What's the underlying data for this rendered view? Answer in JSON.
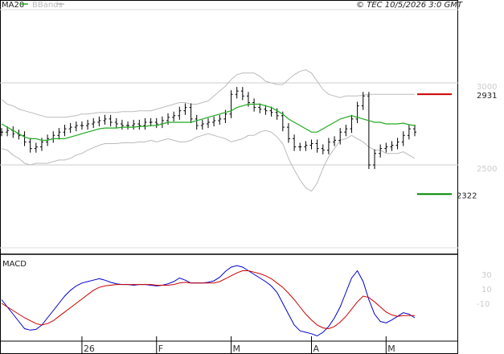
{
  "header": {
    "legend": [
      {
        "name": "MA20",
        "color": "#22aa22"
      },
      {
        "name": "BBands",
        "color": "#bbbbbb"
      }
    ],
    "copyright": "© TEC 10/5/2026 3:0 GMT"
  },
  "chart_data": [
    {
      "type": "line",
      "title": "",
      "price_axis": {
        "ticks": [
          {
            "value": 3000,
            "label": "3000"
          },
          {
            "value": 2500,
            "label": "2500"
          }
        ]
      },
      "levels": [
        {
          "value": 2931,
          "label": "2931",
          "color": "#cc0000"
        },
        {
          "value": 2322,
          "label": "2322",
          "color": "#008800"
        }
      ],
      "months": [
        {
          "index": 14,
          "label": "26"
        },
        {
          "index": 27,
          "label": "F"
        },
        {
          "index": 40,
          "label": "M"
        },
        {
          "index": 54,
          "label": "A"
        },
        {
          "index": 67,
          "label": "M"
        }
      ],
      "series": [
        {
          "name": "",
          "kind": "ohlc",
          "close": [
            2700,
            2710,
            2690,
            2680,
            2640,
            2600,
            2610,
            2640,
            2660,
            2680,
            2700,
            2720,
            2730,
            2740,
            2740,
            2750,
            2760,
            2770,
            2780,
            2760,
            2750,
            2740,
            2740,
            2750,
            2740,
            2760,
            2760,
            2750,
            2770,
            2790,
            2800,
            2830,
            2850,
            2780,
            2740,
            2750,
            2760,
            2770,
            2780,
            2810,
            2930,
            2950,
            2920,
            2880,
            2850,
            2840,
            2830,
            2820,
            2800,
            2730,
            2660,
            2610,
            2610,
            2620,
            2630,
            2600,
            2590,
            2640,
            2650,
            2700,
            2720,
            2780,
            2860,
            2920,
            2500,
            2570,
            2600,
            2610,
            2620,
            2640,
            2680,
            2720,
            2700
          ]
        },
        {
          "name": "MA20",
          "color": "#22aa22",
          "values": [
            2750,
            2730,
            2710,
            2690,
            2670,
            2660,
            2660,
            2650,
            2650,
            2660,
            2660,
            2660,
            2670,
            2680,
            2690,
            2700,
            2710,
            2720,
            2725,
            2725,
            2725,
            2730,
            2730,
            2730,
            2735,
            2735,
            2740,
            2740,
            2750,
            2760,
            2760,
            2760,
            2760,
            2760,
            2770,
            2780,
            2790,
            2800,
            2810,
            2820,
            2830,
            2850,
            2860,
            2870,
            2870,
            2870,
            2860,
            2850,
            2830,
            2810,
            2780,
            2760,
            2740,
            2720,
            2700,
            2700,
            2720,
            2740,
            2760,
            2780,
            2790,
            2800,
            2790,
            2780,
            2770,
            2760,
            2760,
            2750,
            2750,
            2750,
            2755,
            2745,
            2740
          ]
        },
        {
          "name": "BBands",
          "color": "#bbbbbb",
          "upper": [
            2900,
            2870,
            2860,
            2840,
            2830,
            2820,
            2810,
            2800,
            2790,
            2790,
            2790,
            2790,
            2795,
            2800,
            2810,
            2810,
            2815,
            2820,
            2820,
            2820,
            2820,
            2825,
            2825,
            2825,
            2830,
            2830,
            2830,
            2840,
            2850,
            2860,
            2870,
            2880,
            2880,
            2870,
            2870,
            2880,
            2890,
            2920,
            2950,
            2980,
            3020,
            3050,
            3060,
            3060,
            3060,
            3040,
            3010,
            3000,
            2990,
            2990,
            3020,
            3050,
            3070,
            3080,
            3060,
            3010,
            2960,
            2930,
            2920,
            2910,
            2920,
            2920,
            2920,
            2925,
            2930,
            2930,
            2930,
            2930,
            2930,
            2930,
            2930,
            2930,
            2930
          ]
        },
        {
          "name": "BBands lower",
          "color": "#bbbbbb",
          "lower": [
            2600,
            2590,
            2560,
            2540,
            2510,
            2500,
            2510,
            2510,
            2510,
            2520,
            2530,
            2530,
            2540,
            2560,
            2570,
            2590,
            2605,
            2620,
            2630,
            2630,
            2630,
            2635,
            2635,
            2635,
            2640,
            2640,
            2650,
            2640,
            2650,
            2660,
            2650,
            2640,
            2640,
            2650,
            2670,
            2680,
            2690,
            2680,
            2670,
            2660,
            2640,
            2650,
            2660,
            2680,
            2680,
            2700,
            2710,
            2700,
            2670,
            2630,
            2540,
            2470,
            2410,
            2360,
            2340,
            2390,
            2480,
            2550,
            2600,
            2650,
            2660,
            2680,
            2660,
            2640,
            2610,
            2590,
            2590,
            2570,
            2570,
            2570,
            2580,
            2560,
            2540
          ]
        }
      ]
    },
    {
      "type": "line",
      "title": "MACD",
      "axis": {
        "ticks": [
          {
            "value": 30,
            "label": "30"
          },
          {
            "value": 10,
            "label": "10"
          },
          {
            "value": -10,
            "label": "-10"
          }
        ]
      },
      "series": [
        {
          "name": "",
          "color": "#0000cc",
          "values": [
            -5,
            -15,
            -25,
            -35,
            -45,
            -47,
            -46,
            -40,
            -30,
            -20,
            -10,
            0,
            8,
            14,
            18,
            20,
            22,
            24,
            22,
            19,
            17,
            16,
            16,
            15,
            16,
            16,
            15,
            14,
            15,
            17,
            20,
            25,
            22,
            18,
            18,
            18,
            19,
            21,
            26,
            34,
            40,
            42,
            40,
            35,
            30,
            25,
            20,
            14,
            5,
            -10,
            -25,
            -40,
            -48,
            -50,
            -52,
            -55,
            -50,
            -42,
            -30,
            -15,
            5,
            25,
            35,
            20,
            -5,
            -25,
            -35,
            -37,
            -33,
            -28,
            -23,
            -25,
            -30
          ]
        },
        {
          "name": "",
          "color": "#cc0000",
          "values": [
            -10,
            -15,
            -20,
            -25,
            -30,
            -34,
            -38,
            -40,
            -38,
            -34,
            -28,
            -22,
            -16,
            -10,
            -4,
            2,
            8,
            12,
            14,
            15,
            16,
            16,
            16,
            16,
            16,
            16,
            16,
            15,
            15,
            15,
            16,
            18,
            19,
            18,
            18,
            18,
            18,
            18,
            20,
            24,
            28,
            32,
            35,
            35,
            33,
            31,
            28,
            24,
            18,
            12,
            4,
            -5,
            -15,
            -25,
            -33,
            -40,
            -44,
            -45,
            -42,
            -36,
            -28,
            -18,
            -8,
            0,
            -2,
            -8,
            -15,
            -22,
            -26,
            -28,
            -27,
            -27,
            -27
          ]
        }
      ]
    }
  ]
}
